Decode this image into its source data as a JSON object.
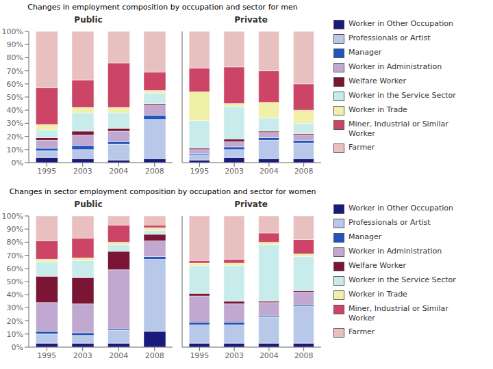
{
  "chart_data": [
    {
      "type": "bar",
      "stacked": true,
      "grid": false,
      "title": "Changes in employment composition by occupation and sector for men",
      "subtitle": "Public",
      "categories": [
        "1995",
        "2003",
        "2004",
        "2008"
      ],
      "ylim": [
        0,
        100
      ],
      "yticks": [
        {
          "value": 0,
          "label": "0%"
        },
        {
          "value": 10,
          "label": "10%"
        },
        {
          "value": 20,
          "label": "20%"
        },
        {
          "value": 30,
          "label": "30%"
        },
        {
          "value": 40,
          "label": "40%"
        },
        {
          "value": 50,
          "label": "50%"
        },
        {
          "value": 60,
          "label": "60%"
        },
        {
          "value": 70,
          "label": "70%"
        },
        {
          "value": 80,
          "label": "80%"
        },
        {
          "value": 90,
          "label": "90%"
        },
        {
          "value": 100,
          "label": "100%"
        }
      ],
      "series": [
        {
          "name": "Worker in Other Occupation",
          "color": "#1a1a7e",
          "values": [
            4,
            3,
            2,
            3
          ]
        },
        {
          "name": "Professionals or Artist",
          "color": "#b8c8e8",
          "values": [
            5,
            7,
            12,
            30
          ]
        },
        {
          "name": "Manager",
          "color": "#2255bb",
          "values": [
            2,
            3,
            2,
            3
          ]
        },
        {
          "name": "Worker in Administration",
          "color": "#c0a8d0",
          "values": [
            6,
            8,
            8,
            8
          ]
        },
        {
          "name": "Welfare Worker",
          "color": "#7a1535",
          "values": [
            2,
            3,
            2,
            1
          ]
        },
        {
          "name": "Worker in the Service Sector",
          "color": "#c8ecec",
          "values": [
            6,
            14,
            12,
            8
          ]
        },
        {
          "name": "Worker in Trade",
          "color": "#f0f0a8",
          "values": [
            4,
            4,
            4,
            2
          ]
        },
        {
          "name": "Miner, Industrial or Similar\nWorker",
          "color": "#cc4466",
          "values": [
            28,
            21,
            34,
            14
          ]
        },
        {
          "name": "Farmer",
          "color": "#e8c0c0",
          "values": [
            43,
            37,
            24,
            31
          ]
        }
      ]
    },
    {
      "type": "bar",
      "stacked": true,
      "grid": false,
      "subtitle": "Private",
      "legend": "right",
      "tick_labels": "x",
      "categories": [
        "1995",
        "2003",
        "2004",
        "2008"
      ],
      "ylim": [
        0,
        100
      ],
      "yticks": [
        {
          "value": 0,
          "label": "0%"
        },
        {
          "value": 10,
          "label": "10%"
        },
        {
          "value": 20,
          "label": "20%"
        },
        {
          "value": 30,
          "label": "30%"
        },
        {
          "value": 40,
          "label": "40%"
        },
        {
          "value": 50,
          "label": "50%"
        },
        {
          "value": 60,
          "label": "60%"
        },
        {
          "value": 70,
          "label": "70%"
        },
        {
          "value": 80,
          "label": "80%"
        },
        {
          "value": 90,
          "label": "90%"
        },
        {
          "value": 100,
          "label": "100%"
        }
      ],
      "series": [
        {
          "name": "Worker in Other Occupation",
          "color": "#1a1a7e",
          "values": [
            2,
            4,
            3,
            3
          ]
        },
        {
          "name": "Professionals or Artist",
          "color": "#b8c8e8",
          "values": [
            4,
            6,
            14,
            12
          ]
        },
        {
          "name": "Manager",
          "color": "#2255bb",
          "values": [
            1,
            2,
            2,
            2
          ]
        },
        {
          "name": "Worker in Administration",
          "color": "#c0a8d0",
          "values": [
            3,
            4,
            4,
            4
          ]
        },
        {
          "name": "Welfare Worker",
          "color": "#7a1535",
          "values": [
            1,
            2,
            1,
            1
          ]
        },
        {
          "name": "Worker in the Service Sector",
          "color": "#c8ecec",
          "values": [
            21,
            25,
            10,
            8
          ]
        },
        {
          "name": "Worker in Trade",
          "color": "#f0f0a8",
          "values": [
            22,
            2,
            12,
            10
          ]
        },
        {
          "name": "Miner, Industrial or Similar\nWorker",
          "color": "#cc4466",
          "values": [
            18,
            28,
            24,
            20
          ]
        },
        {
          "name": "Farmer",
          "color": "#e8c0c0",
          "values": [
            28,
            27,
            30,
            40
          ]
        }
      ]
    },
    {
      "type": "bar",
      "stacked": true,
      "grid": false,
      "title": "Changes in sector employment composition by occupation and sector for women",
      "subtitle": "Public",
      "categories": [
        "1995",
        "2003",
        "2004",
        "2008"
      ],
      "ylim": [
        0,
        100
      ],
      "yticks": [
        {
          "value": 0,
          "label": "0%"
        },
        {
          "value": 10,
          "label": "10%"
        },
        {
          "value": 20,
          "label": "20%"
        },
        {
          "value": 30,
          "label": "30%"
        },
        {
          "value": 40,
          "label": "40%"
        },
        {
          "value": 50,
          "label": "50%"
        },
        {
          "value": 60,
          "label": "60%"
        },
        {
          "value": 70,
          "label": "70%"
        },
        {
          "value": 80,
          "label": "80%"
        },
        {
          "value": 90,
          "label": "90%"
        },
        {
          "value": 100,
          "label": "100%"
        }
      ],
      "series": [
        {
          "name": "Worker in Other Occupation",
          "color": "#1a1a7e",
          "values": [
            3,
            3,
            3,
            12
          ]
        },
        {
          "name": "Professionals or Artist",
          "color": "#b8c8e8",
          "values": [
            7,
            6,
            10,
            55
          ]
        },
        {
          "name": "Manager",
          "color": "#2255bb",
          "values": [
            2,
            2,
            1,
            2
          ]
        },
        {
          "name": "Worker in Administration",
          "color": "#c0a8d0",
          "values": [
            22,
            22,
            45,
            12
          ]
        },
        {
          "name": "Welfare Worker",
          "color": "#7a1535",
          "values": [
            20,
            20,
            14,
            5
          ]
        },
        {
          "name": "Worker in the Service Sector",
          "color": "#c8ecec",
          "values": [
            11,
            13,
            5,
            3
          ]
        },
        {
          "name": "Worker in Trade",
          "color": "#f0f0a8",
          "values": [
            2,
            2,
            2,
            2
          ]
        },
        {
          "name": "Miner, Industrial or Similar\nWorker",
          "color": "#cc4466",
          "values": [
            14,
            15,
            13,
            2
          ]
        },
        {
          "name": "Farmer",
          "color": "#e8c0c0",
          "values": [
            19,
            17,
            7,
            7
          ]
        }
      ]
    },
    {
      "type": "bar",
      "stacked": true,
      "grid": false,
      "subtitle": "Private",
      "legend": "right",
      "tick_labels": "x",
      "categories": [
        "1995",
        "2003",
        "2004",
        "2008"
      ],
      "ylim": [
        0,
        100
      ],
      "yticks": [
        {
          "value": 0,
          "label": "0%"
        },
        {
          "value": 10,
          "label": "10%"
        },
        {
          "value": 20,
          "label": "20%"
        },
        {
          "value": 30,
          "label": "30%"
        },
        {
          "value": 40,
          "label": "40%"
        },
        {
          "value": 50,
          "label": "50%"
        },
        {
          "value": 60,
          "label": "60%"
        },
        {
          "value": 70,
          "label": "70%"
        },
        {
          "value": 80,
          "label": "80%"
        },
        {
          "value": 90,
          "label": "90%"
        },
        {
          "value": 100,
          "label": "100%"
        }
      ],
      "series": [
        {
          "name": "Worker in Other Occupation",
          "color": "#1a1a7e",
          "values": [
            3,
            3,
            3,
            3
          ]
        },
        {
          "name": "Professionals or Artist",
          "color": "#b8c8e8",
          "values": [
            14,
            14,
            20,
            28
          ]
        },
        {
          "name": "Manager",
          "color": "#2255bb",
          "values": [
            2,
            2,
            1,
            1
          ]
        },
        {
          "name": "Worker in Administration",
          "color": "#c0a8d0",
          "values": [
            20,
            14,
            10,
            10
          ]
        },
        {
          "name": "Welfare Worker",
          "color": "#7a1535",
          "values": [
            2,
            2,
            1,
            1
          ]
        },
        {
          "name": "Worker in the Service Sector",
          "color": "#c8ecec",
          "values": [
            21,
            27,
            43,
            26
          ]
        },
        {
          "name": "Worker in Trade",
          "color": "#f0f0a8",
          "values": [
            2,
            2,
            2,
            2
          ]
        },
        {
          "name": "Miner, Industrial or Similar\nWorker",
          "color": "#cc4466",
          "values": [
            2,
            3,
            7,
            11
          ]
        },
        {
          "name": "Farmer",
          "color": "#e8c0c0",
          "values": [
            34,
            33,
            13,
            18
          ]
        }
      ]
    }
  ]
}
